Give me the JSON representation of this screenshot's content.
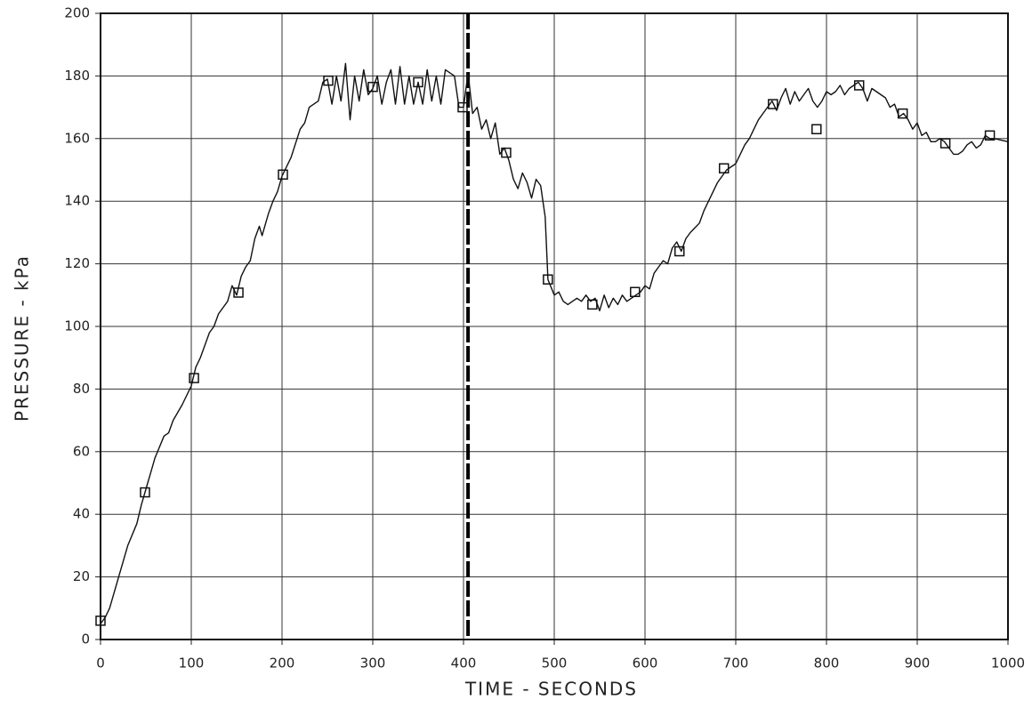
{
  "chart_data": {
    "type": "line",
    "xlabel": "TIME - SECONDS",
    "ylabel": "PRESSURE - kPa",
    "xlim": [
      0,
      1000
    ],
    "xticks": [
      0,
      100,
      200,
      300,
      400,
      500,
      600,
      700,
      800,
      900,
      1000
    ],
    "ylim": [
      0,
      200
    ],
    "yticks": [
      0,
      20,
      40,
      60,
      80,
      100,
      120,
      140,
      160,
      180,
      200
    ],
    "grid": true,
    "vline": {
      "x": 405,
      "color": "#000000"
    },
    "series": [
      {
        "style": "line",
        "color": "#111111",
        "x": [
          0,
          5,
          10,
          20,
          30,
          40,
          45,
          50,
          55,
          60,
          70,
          75,
          80,
          90,
          100,
          105,
          110,
          115,
          120,
          125,
          130,
          140,
          145,
          150,
          155,
          160,
          165,
          170,
          175,
          178,
          185,
          190,
          195,
          200,
          210,
          220,
          225,
          230,
          235,
          240,
          245,
          250,
          255,
          260,
          265,
          270,
          275,
          280,
          285,
          290,
          295,
          300,
          305,
          310,
          315,
          320,
          325,
          330,
          335,
          340,
          345,
          350,
          355,
          360,
          365,
          370,
          375,
          380,
          385,
          390,
          395,
          400,
          405,
          410,
          415,
          420,
          425,
          430,
          435,
          440,
          445,
          450,
          455,
          460,
          465,
          470,
          475,
          480,
          485,
          490,
          493,
          500,
          505,
          510,
          515,
          520,
          525,
          530,
          535,
          540,
          545,
          550,
          555,
          560,
          565,
          570,
          575,
          580,
          585,
          590,
          595,
          600,
          605,
          610,
          615,
          620,
          625,
          630,
          635,
          640,
          645,
          650,
          660,
          665,
          670,
          675,
          680,
          685,
          690,
          700,
          705,
          710,
          715,
          720,
          725,
          730,
          735,
          740,
          745,
          750,
          755,
          760,
          765,
          770,
          775,
          780,
          785,
          790,
          795,
          800,
          805,
          810,
          815,
          820,
          825,
          830,
          835,
          840,
          845,
          850,
          855,
          860,
          865,
          870,
          875,
          880,
          885,
          890,
          895,
          900,
          905,
          910,
          915,
          920,
          925,
          930,
          935,
          940,
          945,
          950,
          955,
          960,
          965,
          970,
          975,
          980,
          985,
          1000
        ],
        "values": [
          5,
          7,
          10,
          20,
          30,
          37,
          43,
          48,
          53,
          58,
          65,
          66,
          70,
          75,
          81,
          87,
          90,
          94,
          98,
          100,
          104,
          108,
          113,
          110,
          116,
          119,
          121,
          128,
          132,
          129,
          136,
          140,
          143,
          148,
          154,
          163,
          165,
          170,
          171,
          172,
          178,
          179,
          171,
          180,
          172,
          184,
          166,
          180,
          172,
          182,
          174,
          176,
          180,
          171,
          178,
          182,
          171,
          183,
          171,
          180,
          171,
          178,
          171,
          182,
          172,
          180,
          171,
          182,
          181,
          180,
          170,
          170,
          181,
          168,
          170,
          163,
          166,
          160,
          165,
          155,
          157,
          153,
          147,
          144,
          149,
          146,
          141,
          147,
          145,
          135,
          115,
          110,
          111,
          108,
          107,
          108,
          109,
          108,
          110,
          108,
          109,
          105,
          110,
          106,
          109,
          107,
          110,
          108,
          109,
          110,
          111,
          113,
          112,
          117,
          119,
          121,
          120,
          125,
          127,
          124,
          128,
          130,
          133,
          137,
          140,
          143,
          146,
          148,
          150,
          152,
          155,
          158,
          160,
          163,
          166,
          168,
          170,
          172,
          169,
          173,
          176,
          171,
          175,
          172,
          174,
          176,
          172,
          170,
          172,
          175,
          174,
          175,
          177,
          174,
          176,
          177,
          178,
          176,
          172,
          176,
          175,
          174,
          173,
          170,
          171,
          167,
          168,
          166,
          163,
          165,
          161,
          162,
          159,
          159,
          160,
          159,
          157,
          155,
          155,
          156,
          158,
          159,
          157,
          158,
          161,
          160,
          160,
          159
        ]
      },
      {
        "style": "markers",
        "marker": "square",
        "color": "#111111",
        "x": [
          0,
          49,
          103,
          152,
          201,
          251,
          300,
          350,
          399,
          447,
          493,
          542,
          589,
          638,
          687,
          741,
          789,
          836,
          884,
          931,
          980
        ],
        "values": [
          6,
          47,
          83.5,
          110.8,
          148.5,
          178.5,
          176.5,
          178,
          170,
          155.5,
          115,
          107,
          111,
          124,
          150.5,
          171,
          163,
          177,
          168,
          158.5,
          161
        ]
      }
    ]
  }
}
